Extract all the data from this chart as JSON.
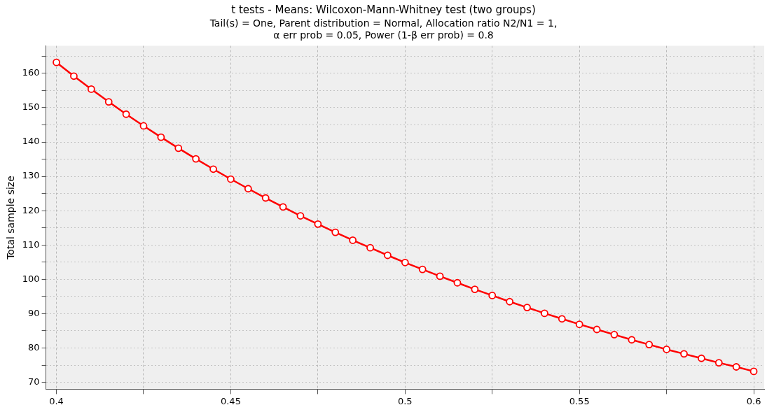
{
  "chart_data": {
    "type": "line",
    "title": "t tests - Means: Wilcoxon-Mann-Whitney test (two groups)",
    "subtitle": "Tail(s) = One, Parent distribution = Normal, Allocation ratio N2/N1 = 1,\nα err prob = 0.05, Power (1-β err prob) = 0.8",
    "ylabel": "Total sample size",
    "x": [
      0.4,
      0.405,
      0.41,
      0.415,
      0.42,
      0.425,
      0.43,
      0.435,
      0.44,
      0.445,
      0.45,
      0.455,
      0.46,
      0.465,
      0.47,
      0.475,
      0.48,
      0.485,
      0.49,
      0.495,
      0.5,
      0.505,
      0.51,
      0.515,
      0.52,
      0.525,
      0.53,
      0.535,
      0.54,
      0.545,
      0.55,
      0.555,
      0.56,
      0.565,
      0.57,
      0.575,
      0.58,
      0.585,
      0.59,
      0.595,
      0.6
    ],
    "series": [
      {
        "color": "#ff0000",
        "values": [
          163.2,
          159.2,
          155.4,
          151.7,
          148.1,
          144.7,
          141.4,
          138.2,
          135.1,
          132.1,
          129.2,
          126.4,
          123.7,
          121.1,
          118.5,
          116.1,
          113.7,
          111.4,
          109.2,
          107.0,
          104.9,
          102.9,
          100.9,
          99.0,
          97.1,
          95.3,
          93.5,
          91.8,
          90.1,
          88.5,
          86.9,
          85.4,
          83.9,
          82.4,
          81.0,
          79.6,
          78.3,
          77.0,
          75.7,
          74.5,
          73.2
        ]
      }
    ],
    "xlim": [
      0.397,
      0.603
    ],
    "ylim": [
      68,
      168
    ],
    "xticks": [
      0.4,
      {
        "value": 0.425,
        "label": null
      },
      0.45,
      {
        "value": 0.475,
        "label": null
      },
      0.5,
      {
        "value": 0.525,
        "label": null
      },
      0.55,
      {
        "value": 0.575,
        "label": null
      },
      0.6
    ],
    "yticks": [
      70,
      {
        "value": 75,
        "label": null
      },
      80,
      {
        "value": 85,
        "label": null
      },
      90,
      {
        "value": 95,
        "label": null
      },
      100,
      {
        "value": 105,
        "label": null
      },
      110,
      {
        "value": 115,
        "label": null
      },
      120,
      {
        "value": 125,
        "label": null
      },
      130,
      {
        "value": 135,
        "label": null
      },
      140,
      {
        "value": 145,
        "label": null
      },
      150,
      {
        "value": 155,
        "label": null
      },
      160,
      {
        "value": 165,
        "label": null
      }
    ],
    "grid": true,
    "marker": "circle",
    "line_style": "solid"
  }
}
